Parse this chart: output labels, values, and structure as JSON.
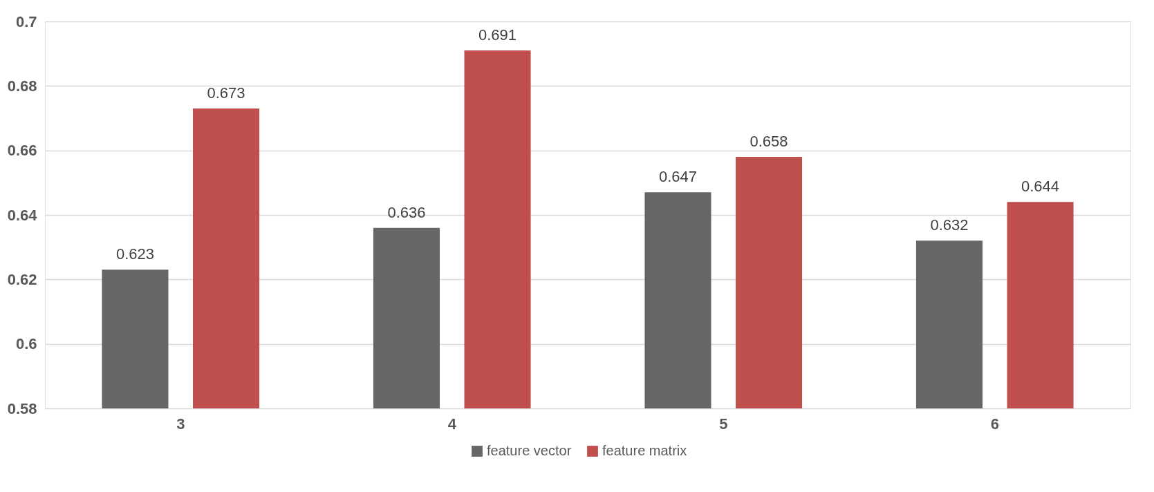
{
  "chart_data": {
    "type": "bar",
    "categories": [
      "3",
      "4",
      "5",
      "6"
    ],
    "series": [
      {
        "name": "feature vector",
        "color": "#666666",
        "values": [
          0.623,
          0.636,
          0.647,
          0.632
        ]
      },
      {
        "name": "feature matrix",
        "color": "#c0504d",
        "values": [
          0.673,
          0.691,
          0.658,
          0.644
        ]
      }
    ],
    "ylim": [
      0.58,
      0.7
    ],
    "yticks": [
      0.58,
      0.6,
      0.62,
      0.64,
      0.66,
      0.68,
      0.7
    ],
    "grid": "y",
    "legend": "bottom",
    "data_labels": true
  }
}
